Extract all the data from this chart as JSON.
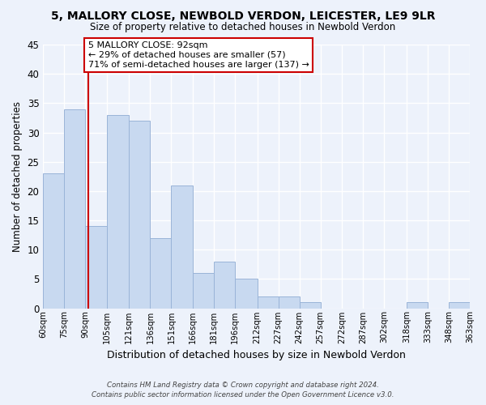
{
  "title": "5, MALLORY CLOSE, NEWBOLD VERDON, LEICESTER, LE9 9LR",
  "subtitle": "Size of property relative to detached houses in Newbold Verdon",
  "xlabel": "Distribution of detached houses by size in Newbold Verdon",
  "ylabel": "Number of detached properties",
  "bins": [
    60,
    75,
    90,
    105,
    121,
    136,
    151,
    166,
    181,
    196,
    212,
    227,
    242,
    257,
    272,
    287,
    302,
    318,
    333,
    348,
    363
  ],
  "counts": [
    23,
    34,
    14,
    33,
    32,
    12,
    21,
    6,
    8,
    5,
    2,
    2,
    1,
    0,
    0,
    0,
    0,
    1,
    0,
    1
  ],
  "bar_color": "#c8d9f0",
  "bar_edge_color": "#9ab4d8",
  "property_line_x": 92,
  "property_line_color": "#cc0000",
  "ylim": [
    0,
    45
  ],
  "yticks": [
    0,
    5,
    10,
    15,
    20,
    25,
    30,
    35,
    40,
    45
  ],
  "annotation_title": "5 MALLORY CLOSE: 92sqm",
  "annotation_line1": "← 29% of detached houses are smaller (57)",
  "annotation_line2": "71% of semi-detached houses are larger (137) →",
  "annotation_box_color": "#ffffff",
  "annotation_box_edge": "#cc0000",
  "footer_line1": "Contains HM Land Registry data © Crown copyright and database right 2024.",
  "footer_line2": "Contains public sector information licensed under the Open Government Licence v3.0.",
  "background_color": "#edf2fb",
  "grid_color": "#ffffff",
  "bin_labels": [
    "60sqm",
    "75sqm",
    "90sqm",
    "105sqm",
    "121sqm",
    "136sqm",
    "151sqm",
    "166sqm",
    "181sqm",
    "196sqm",
    "212sqm",
    "227sqm",
    "242sqm",
    "257sqm",
    "272sqm",
    "287sqm",
    "302sqm",
    "318sqm",
    "333sqm",
    "348sqm",
    "363sqm"
  ]
}
